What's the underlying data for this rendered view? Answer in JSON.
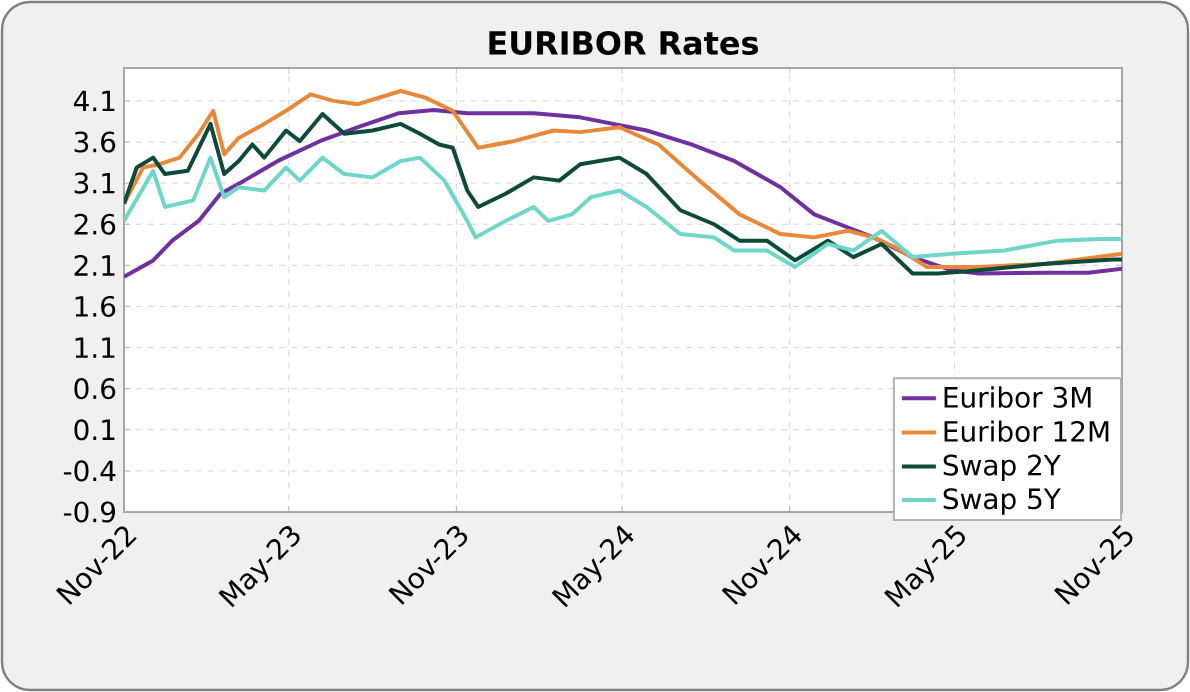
{
  "chart_data": {
    "type": "line",
    "title": "EURIBOR Rates",
    "xlim": [
      "2022-11-01",
      "2025-11-01"
    ],
    "xticks": [
      {
        "value": "2022-11-01",
        "label": "Nov-22"
      },
      {
        "value": "2023-05-01",
        "label": "May-23"
      },
      {
        "value": "2023-11-01",
        "label": "Nov-23"
      },
      {
        "value": "2024-05-01",
        "label": "May-24"
      },
      {
        "value": "2024-11-01",
        "label": "Nov-24"
      },
      {
        "value": "2025-05-01",
        "label": "May-25"
      },
      {
        "value": "2025-11-01",
        "label": "Nov-25"
      }
    ],
    "ylim": [
      -0.9,
      4.5
    ],
    "yticks": [
      -0.9,
      -0.4,
      0.1,
      0.6,
      1.1,
      1.6,
      2.1,
      2.6,
      3.1,
      3.6,
      4.1
    ],
    "grid": true,
    "legend": "bottom right",
    "marker": "none",
    "line_style": "solid",
    "series": [
      {
        "name": "Euribor 3M",
        "color": "#7030a0",
        "x": [
          "2022-11-01",
          "2022-12-03",
          "2022-12-24",
          "2023-01-22",
          "2023-02-15",
          "2023-03-13",
          "2023-04-19",
          "2023-06-04",
          "2023-07-16",
          "2023-08-30",
          "2023-10-07",
          "2023-11-13",
          "2024-01-25",
          "2024-03-16",
          "2024-05-28",
          "2024-07-16",
          "2024-09-01",
          "2024-10-22",
          "2024-11-28",
          "2025-01-04",
          "2025-02-01",
          "2025-03-16",
          "2025-04-28",
          "2025-05-28",
          "2025-08-10",
          "2025-09-25",
          "2025-11-01"
        ],
        "values": [
          1.96,
          2.16,
          2.4,
          2.64,
          2.97,
          3.13,
          3.37,
          3.61,
          3.78,
          3.95,
          3.99,
          3.95,
          3.95,
          3.9,
          3.74,
          3.57,
          3.37,
          3.05,
          2.72,
          2.56,
          2.44,
          2.2,
          2.04,
          2.0,
          2.01,
          2.01,
          2.06
        ]
      },
      {
        "name": "Euribor 12M",
        "color": "#e8893a",
        "x": [
          "2022-11-01",
          "2022-11-22",
          "2022-12-10",
          "2023-01-01",
          "2023-01-22",
          "2023-02-07",
          "2023-02-19",
          "2023-03-07",
          "2023-04-04",
          "2023-04-28",
          "2023-05-25",
          "2023-06-19",
          "2023-07-16",
          "2023-09-01",
          "2023-09-28",
          "2023-10-28",
          "2023-11-25",
          "2024-01-03",
          "2024-02-16",
          "2024-03-16",
          "2024-04-28",
          "2024-06-10",
          "2024-07-25",
          "2024-09-07",
          "2024-10-22",
          "2024-11-28",
          "2025-01-04",
          "2025-02-01",
          "2025-02-25",
          "2025-04-01",
          "2025-05-28",
          "2025-08-10",
          "2025-11-01"
        ],
        "values": [
          2.85,
          3.29,
          3.33,
          3.41,
          3.7,
          3.98,
          3.45,
          3.65,
          3.82,
          3.98,
          4.18,
          4.1,
          4.06,
          4.22,
          4.14,
          3.98,
          3.53,
          3.61,
          3.74,
          3.72,
          3.78,
          3.57,
          3.13,
          2.72,
          2.48,
          2.44,
          2.52,
          2.44,
          2.32,
          2.08,
          2.08,
          2.12,
          2.24
        ]
      },
      {
        "name": "Swap 2Y",
        "color": "#0d4a3c",
        "x": [
          "2022-11-01",
          "2022-11-15",
          "2022-12-03",
          "2022-12-16",
          "2023-01-10",
          "2023-02-04",
          "2023-02-19",
          "2023-03-07",
          "2023-03-22",
          "2023-04-04",
          "2023-04-28",
          "2023-05-13",
          "2023-06-07",
          "2023-07-01",
          "2023-08-01",
          "2023-09-01",
          "2023-09-22",
          "2023-10-13",
          "2023-10-28",
          "2023-11-13",
          "2023-11-25",
          "2023-12-25",
          "2024-01-25",
          "2024-02-22",
          "2024-03-16",
          "2024-04-28",
          "2024-05-28",
          "2024-07-04",
          "2024-08-10",
          "2024-09-07",
          "2024-10-07",
          "2024-11-07",
          "2024-12-13",
          "2025-01-10",
          "2025-02-10",
          "2025-03-16",
          "2025-04-13",
          "2025-05-28",
          "2025-08-10",
          "2025-10-22",
          "2025-11-01"
        ],
        "values": [
          2.85,
          3.29,
          3.41,
          3.21,
          3.25,
          3.82,
          3.21,
          3.37,
          3.57,
          3.41,
          3.74,
          3.61,
          3.94,
          3.7,
          3.74,
          3.82,
          3.7,
          3.57,
          3.53,
          3.01,
          2.81,
          2.97,
          3.17,
          3.13,
          3.33,
          3.41,
          3.21,
          2.77,
          2.6,
          2.4,
          2.4,
          2.16,
          2.4,
          2.2,
          2.36,
          2.0,
          2.0,
          2.04,
          2.12,
          2.17,
          2.17
        ]
      },
      {
        "name": "Swap 5Y",
        "color": "#6fd6c8",
        "x": [
          "2022-11-01",
          "2022-12-03",
          "2022-12-16",
          "2023-01-16",
          "2023-02-04",
          "2023-02-19",
          "2023-03-07",
          "2023-04-04",
          "2023-04-28",
          "2023-05-13",
          "2023-06-07",
          "2023-07-01",
          "2023-08-01",
          "2023-09-01",
          "2023-09-22",
          "2023-10-19",
          "2023-11-13",
          "2023-11-22",
          "2023-12-25",
          "2024-01-25",
          "2024-02-10",
          "2024-03-07",
          "2024-03-28",
          "2024-04-28",
          "2024-05-28",
          "2024-07-04",
          "2024-08-10",
          "2024-09-01",
          "2024-10-07",
          "2024-11-07",
          "2024-12-13",
          "2025-01-10",
          "2025-02-10",
          "2025-03-16",
          "2025-04-28",
          "2025-06-25",
          "2025-08-22",
          "2025-10-07",
          "2025-11-01"
        ],
        "values": [
          2.64,
          3.25,
          2.81,
          2.89,
          3.41,
          2.93,
          3.05,
          3.01,
          3.29,
          3.13,
          3.41,
          3.21,
          3.17,
          3.37,
          3.41,
          3.13,
          2.64,
          2.44,
          2.64,
          2.81,
          2.64,
          2.72,
          2.93,
          3.01,
          2.81,
          2.48,
          2.44,
          2.28,
          2.28,
          2.08,
          2.36,
          2.28,
          2.52,
          2.2,
          2.24,
          2.28,
          2.4,
          2.42,
          2.42
        ]
      }
    ]
  }
}
